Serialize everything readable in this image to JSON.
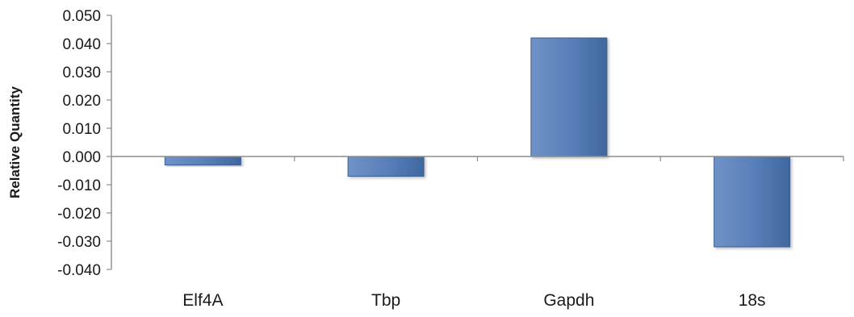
{
  "chart_data": {
    "type": "bar",
    "title": "",
    "xlabel": "",
    "ylabel": "Relative Quantity",
    "categories": [
      "Elf4A",
      "Tbp",
      "Gapdh",
      "18s"
    ],
    "values": [
      -0.003,
      -0.007,
      0.042,
      -0.032
    ],
    "ylim": [
      -0.04,
      0.05
    ],
    "yticks": [
      0.05,
      0.04,
      0.03,
      0.02,
      0.01,
      0.0,
      -0.01,
      -0.02,
      -0.03,
      -0.04
    ],
    "ytick_labels": [
      "0.050",
      "0.040",
      "0.030",
      "0.020",
      "0.010",
      "0.000",
      "-0.010",
      "-0.020",
      "-0.030",
      "-0.040"
    ],
    "grid": false,
    "legend": "none",
    "bar_color": "#4f77b3",
    "bar_edge_color": "#3a5f93",
    "axis_color": "#8c8c8c"
  }
}
